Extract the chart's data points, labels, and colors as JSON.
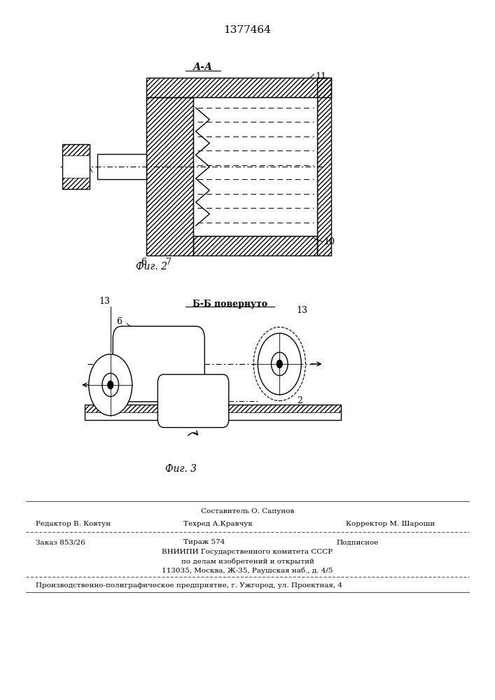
{
  "patent_number": "1377464",
  "bg_color": "#ffffff",
  "line_color": "#000000",
  "fig2_label": "А-А",
  "fig2_caption": "Фиг. 2",
  "fig3_caption": "Фиг. 3",
  "fig3_section": "Б-Б повернуто",
  "footer": {
    "line1_top": "Составитель О. Сапунов",
    "line1_left": "Редактор В. Ковтун",
    "line1_center": "Техред А.Кравчук",
    "line1_right": "Корректор М. Шароши",
    "line2_left": "Заказ 853/26",
    "line2_center": "Тираж 574",
    "line2_right": "Подписное",
    "line3": "ВНИИПИ Государственного комитета СССР",
    "line4": "по делам изобретений и открытий",
    "line5": "113035, Москва, Ж-35, Раушская наб., д. 4/5",
    "line6": "Производственно-полиграфическое предприятие, г. Ужгород, ул. Проектная, 4"
  }
}
